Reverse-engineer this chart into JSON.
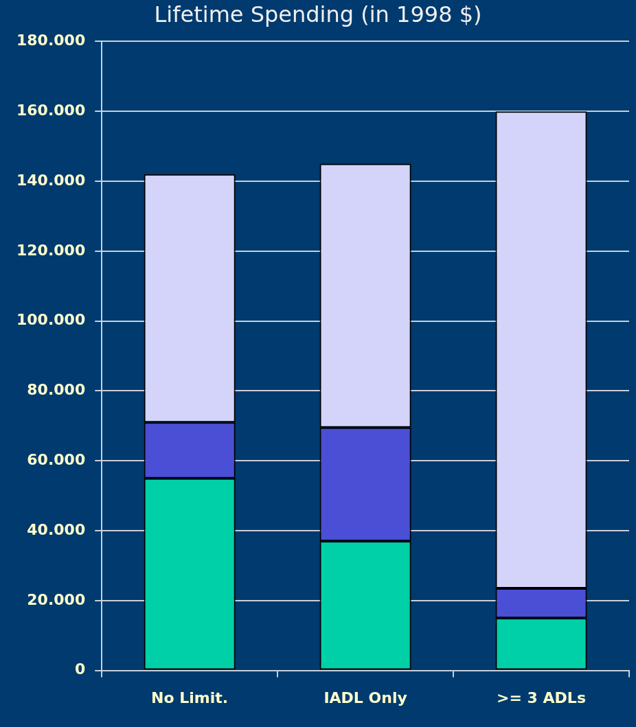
{
  "chart_data": {
    "type": "bar",
    "title": "Lifetime Spending (in 1998 $)",
    "categories": [
      "No Limit.",
      "IADL Only",
      ">= 3 ADLs"
    ],
    "stacked": true,
    "grid": "y",
    "legend": false,
    "series": [
      {
        "color": "#00d0a8",
        "values": [
          55000,
          37000,
          15000
        ]
      },
      {
        "color": "#4a4fd6",
        "values": [
          16000,
          32500,
          8500
        ]
      },
      {
        "color": "#d4d4fa",
        "values": [
          71000,
          75500,
          136500
        ]
      }
    ],
    "ylim": [
      0,
      180000
    ],
    "yticks": [
      {
        "value": 0,
        "label": "0"
      },
      {
        "value": 20000,
        "label": "20.000"
      },
      {
        "value": 40000,
        "label": "40.000"
      },
      {
        "value": 60000,
        "label": "60.000"
      },
      {
        "value": 80000,
        "label": "80.000"
      },
      {
        "value": 100000,
        "label": "100.000"
      },
      {
        "value": 120000,
        "label": "120.000"
      },
      {
        "value": 140000,
        "label": "140.000"
      },
      {
        "value": 160000,
        "label": "160.000"
      },
      {
        "value": 180000,
        "label": "180.000"
      }
    ]
  }
}
